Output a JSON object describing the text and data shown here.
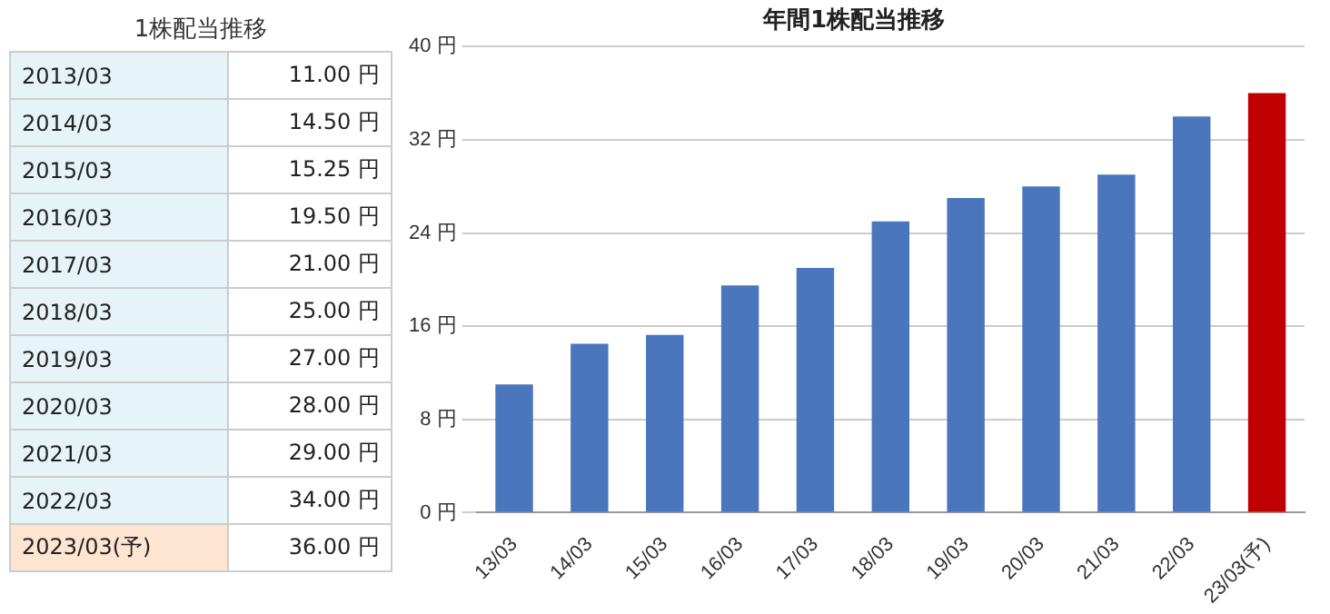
{
  "chart_data": [
    {
      "type": "other",
      "title": "1株配当推移",
      "annotations": [
        "2013/03",
        "11.00 円",
        "2014/03",
        "14.50 円",
        "2015/03",
        "15.25 円",
        "2016/03",
        "19.50 円",
        "2017/03",
        "21.00 円",
        "2018/03",
        "25.00 円",
        "2019/03",
        "27.00 円",
        "2020/03",
        "28.00 円",
        "2021/03",
        "29.00 円",
        "2022/03",
        "34.00 円",
        "2023/03(予)",
        "36.00 円"
      ]
    },
    {
      "type": "bar",
      "title": "年間1株配当推移",
      "categories": [
        "13/03",
        "14/03",
        "15/03",
        "16/03",
        "17/03",
        "18/03",
        "19/03",
        "20/03",
        "21/03",
        "22/03",
        "23/03(予)"
      ],
      "values": [
        11,
        14.5,
        15.25,
        19.5,
        21,
        25,
        27,
        28,
        29,
        34,
        36
      ],
      "colors": [
        "#4a76bd",
        "#4a76bd",
        "#4a76bd",
        "#4a76bd",
        "#4a76bd",
        "#4a76bd",
        "#4a76bd",
        "#4a76bd",
        "#4a76bd",
        "#4a76bd",
        "#c00000"
      ],
      "ylim": [
        0,
        40
      ],
      "yticks": [
        {
          "value": 0,
          "label": "0 円"
        },
        {
          "value": 8,
          "label": "8 円"
        },
        {
          "value": 16,
          "label": "16 円"
        },
        {
          "value": 24,
          "label": "24 円"
        },
        {
          "value": 32,
          "label": "32 円"
        },
        {
          "value": 40,
          "label": "40 円"
        }
      ],
      "grid": "y",
      "legend": false
    }
  ]
}
